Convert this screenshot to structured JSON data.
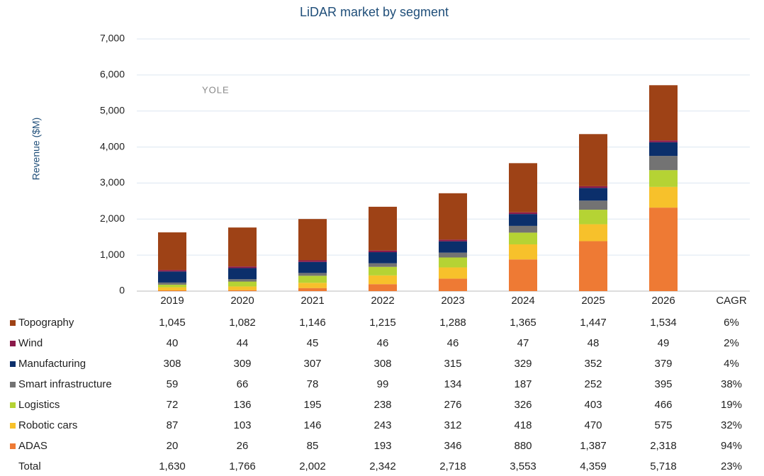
{
  "chart_data": {
    "type": "stacked-bar",
    "title": "LiDAR market by segment",
    "y_label": "Revenue ($M)",
    "watermark": "YOLE",
    "categories": [
      "2019",
      "2020",
      "2021",
      "2022",
      "2023",
      "2024",
      "2025",
      "2026"
    ],
    "cagr_header": "CAGR",
    "ylim": [
      0,
      7000
    ],
    "yticks": [
      0,
      {
        "value": 1000,
        "label": "1,000"
      },
      {
        "value": 2000,
        "label": "2,000"
      },
      {
        "value": 3000,
        "label": "3,000"
      },
      {
        "value": 4000,
        "label": "4,000"
      },
      {
        "value": 5000,
        "label": "5,000"
      },
      {
        "value": 6000,
        "label": "6,000"
      },
      {
        "value": 7000,
        "label": "7,000"
      }
    ],
    "grid": true,
    "series": [
      {
        "name": "Topography",
        "color": "#9e4216",
        "values": [
          1045,
          1082,
          1146,
          1215,
          1288,
          1365,
          1447,
          1534
        ],
        "value_labels": [
          "1,045",
          "1,082",
          "1,146",
          "1,215",
          "1,288",
          "1,365",
          "1,447",
          "1,534"
        ],
        "cagr": "6%"
      },
      {
        "name": "Wind",
        "color": "#8b1a4a",
        "values": [
          40,
          44,
          45,
          46,
          46,
          47,
          48,
          49
        ],
        "cagr": "2%"
      },
      {
        "name": "Manufacturing",
        "color": "#0b2f6b",
        "values": [
          308,
          309,
          307,
          308,
          315,
          329,
          352,
          379
        ],
        "cagr": "4%"
      },
      {
        "name": "Smart infrastructure",
        "color": "#737373",
        "values": [
          59,
          66,
          78,
          99,
          134,
          187,
          252,
          395
        ],
        "cagr": "38%"
      },
      {
        "name": "Logistics",
        "color": "#b5d334",
        "values": [
          72,
          136,
          195,
          238,
          276,
          326,
          403,
          466
        ],
        "cagr": "19%"
      },
      {
        "name": "Robotic cars",
        "color": "#f7c12b",
        "values": [
          87,
          103,
          146,
          243,
          312,
          418,
          470,
          575
        ],
        "cagr": "32%"
      },
      {
        "name": "ADAS",
        "color": "#ee7a34",
        "values": [
          20,
          26,
          85,
          193,
          346,
          880,
          1387,
          2318
        ],
        "value_labels": [
          "20",
          "26",
          "85",
          "193",
          "346",
          "880",
          "1,387",
          "2,318"
        ],
        "cagr": "94%"
      }
    ],
    "total": {
      "name": "Total",
      "values": [
        1630,
        1766,
        2002,
        2342,
        2718,
        3553,
        4359,
        5718
      ],
      "value_labels": [
        "1,630",
        "1,766",
        "2,002",
        "2,342",
        "2,718",
        "3,553",
        "4,359",
        "5,718"
      ],
      "cagr": "23%"
    }
  }
}
